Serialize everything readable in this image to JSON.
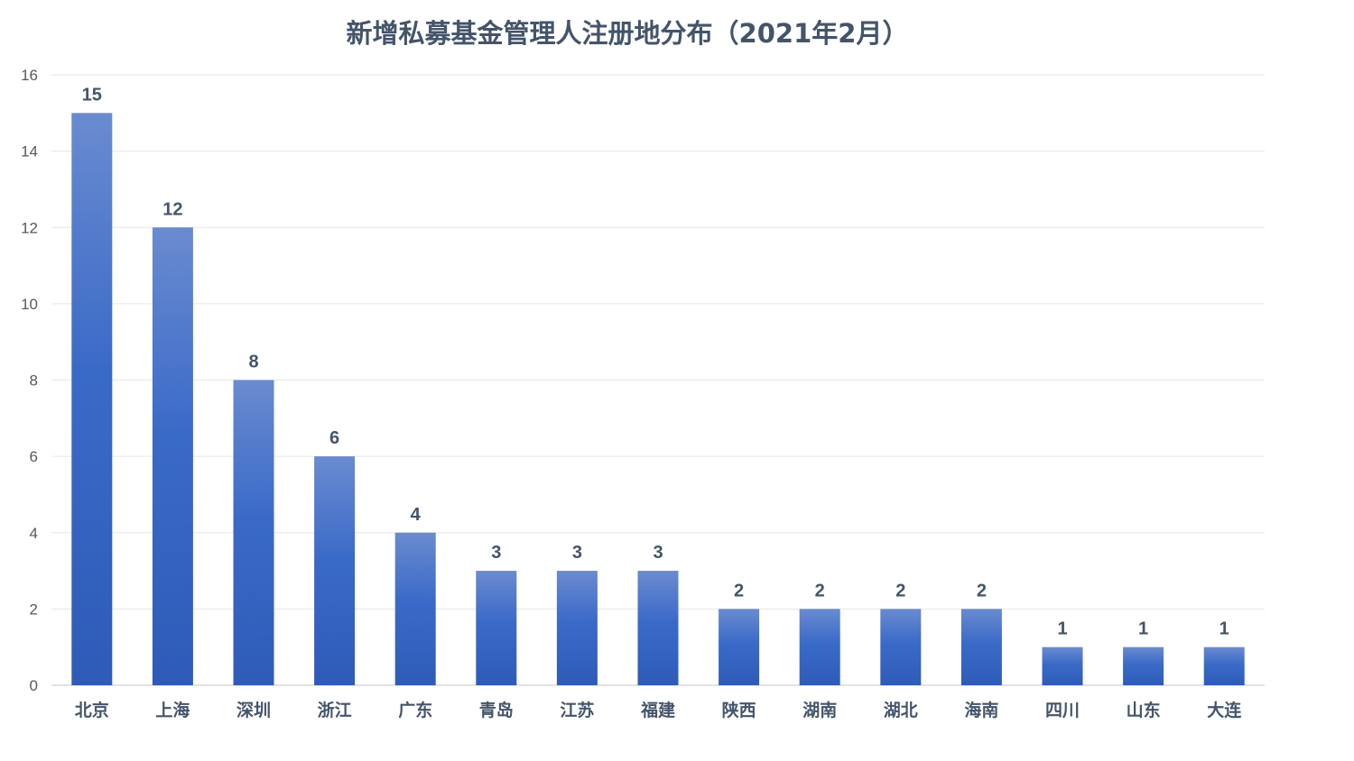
{
  "chart_data": {
    "type": "bar",
    "title": "新增私募基金管理人注册地分布（2021年2月）",
    "xlabel": "",
    "ylabel": "",
    "categories": [
      "北京",
      "上海",
      "深圳",
      "浙江",
      "广东",
      "青岛",
      "江苏",
      "福建",
      "陕西",
      "湖南",
      "湖北",
      "海南",
      "四川",
      "山东",
      "大连"
    ],
    "values": [
      15,
      12,
      8,
      6,
      4,
      3,
      3,
      3,
      2,
      2,
      2,
      2,
      1,
      1,
      1
    ],
    "ylim": [
      0,
      16
    ],
    "yticks": [
      0,
      2,
      4,
      6,
      8,
      10,
      12,
      14,
      16
    ],
    "grid": true,
    "legend": "none",
    "data_labels": true,
    "colors": {
      "bar_top": "#6a8bd0",
      "bar_mid": "#3a6ac8",
      "bar_bottom": "#2e5bb8",
      "grid": "#e6e6e6",
      "axis": "#d9d9d9",
      "title": "#44546a"
    }
  }
}
